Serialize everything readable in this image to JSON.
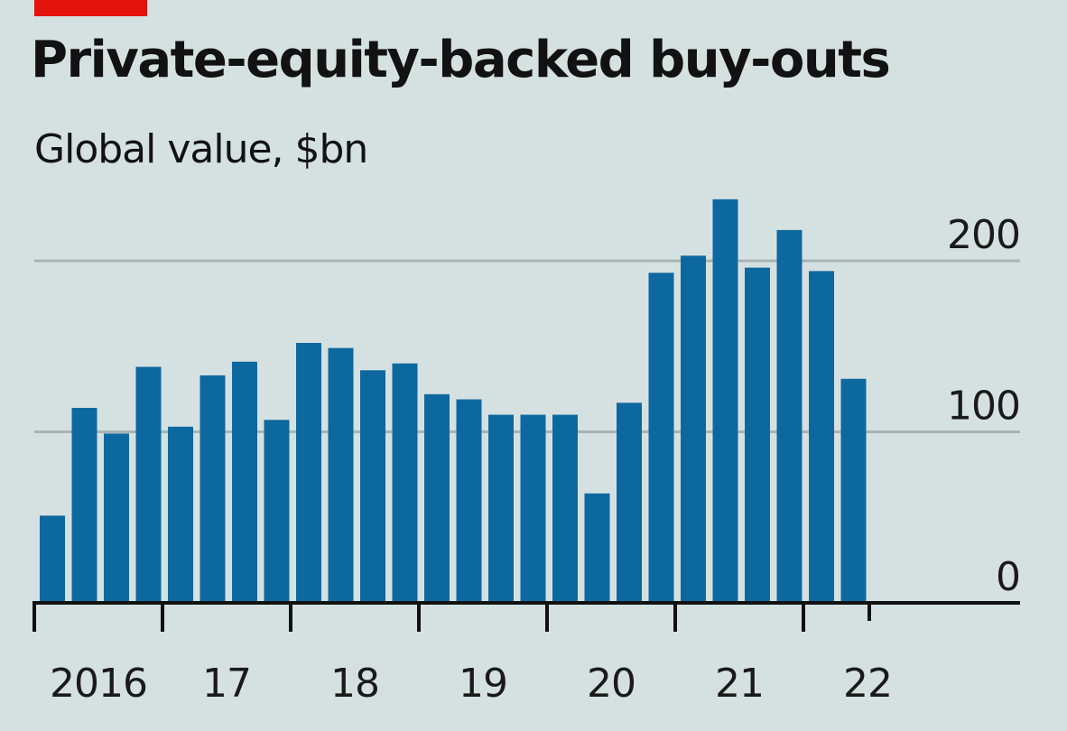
{
  "header": {
    "title": "Private-equity-backed buy-outs",
    "subtitle": "Global value, $bn"
  },
  "colors": {
    "accent": "#e3120b",
    "bar": "#0e68a0",
    "background": "#d5e1e1",
    "gridline": "#a9b3b3",
    "axis": "#111111"
  },
  "chart_data": {
    "type": "bar",
    "title": "Private-equity-backed buy-outs",
    "subtitle": "Global value, $bn",
    "xlabel": "",
    "ylabel": "Global value, $bn",
    "ylim": [
      0,
      240
    ],
    "y_ticks": [
      0,
      100,
      200
    ],
    "y_tick_labels": [
      "0",
      "100",
      "200"
    ],
    "y_axis_side": "right",
    "grid": true,
    "x_tick_labels": [
      "2016",
      "17",
      "18",
      "19",
      "20",
      "21",
      "22"
    ],
    "categories": [
      "2016 Q1",
      "2016 Q2",
      "2016 Q3",
      "2016 Q4",
      "2017 Q1",
      "2017 Q2",
      "2017 Q3",
      "2017 Q4",
      "2018 Q1",
      "2018 Q2",
      "2018 Q3",
      "2018 Q4",
      "2019 Q1",
      "2019 Q2",
      "2019 Q3",
      "2019 Q4",
      "2020 Q1",
      "2020 Q2",
      "2020 Q3",
      "2020 Q4",
      "2021 Q1",
      "2021 Q2",
      "2021 Q3",
      "2021 Q4",
      "2022 Q1",
      "2022 Q2"
    ],
    "values": [
      51,
      114,
      99,
      138,
      103,
      133,
      141,
      107,
      152,
      149,
      136,
      140,
      122,
      119,
      110,
      110,
      110,
      64,
      117,
      193,
      203,
      236,
      196,
      218,
      194,
      131
    ]
  }
}
